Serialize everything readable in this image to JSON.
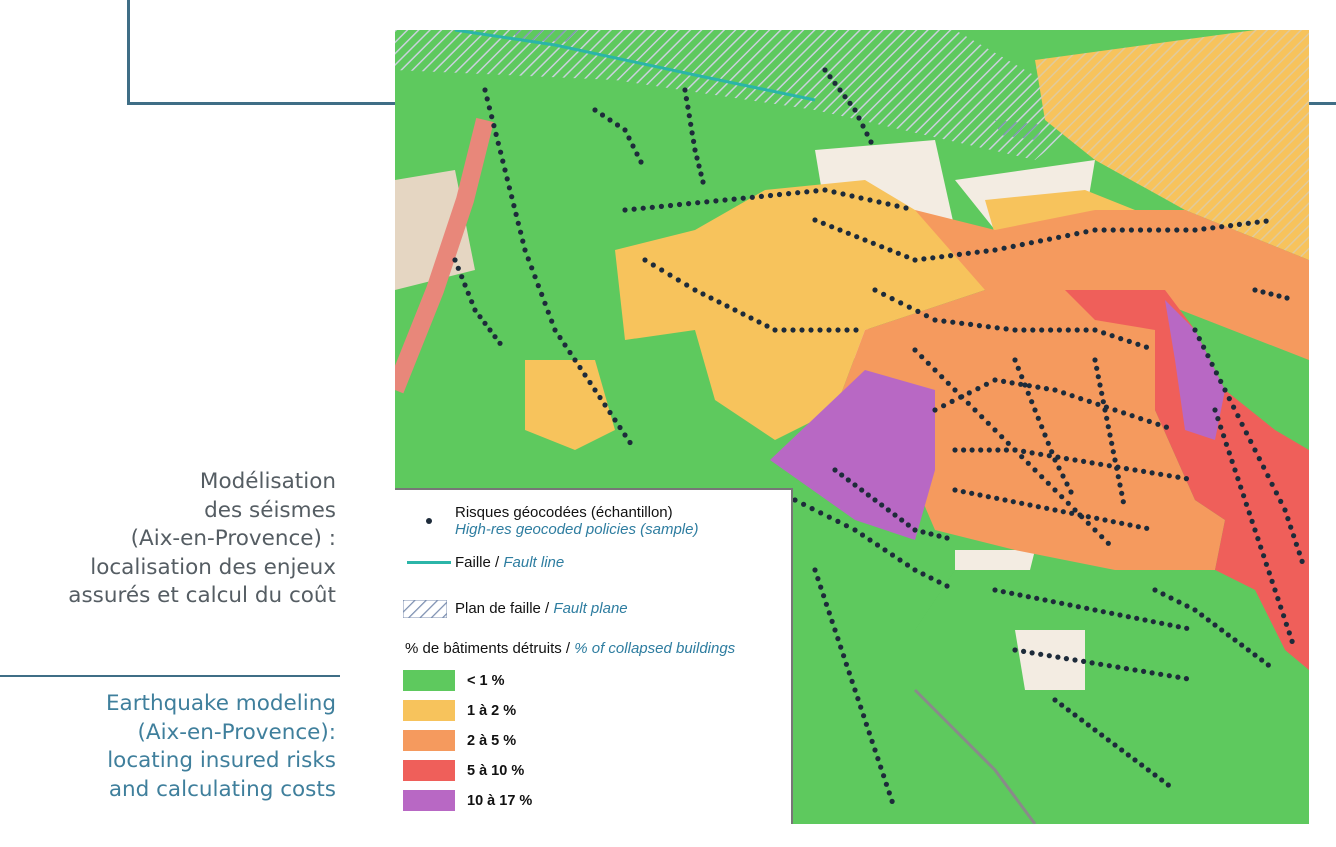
{
  "caption": {
    "french": "Modélisation\ndes séismes\n(Aix-en-Provence) :\nlocalisation des enjeux\nassurés et calcul du coût",
    "english": "Earthquake modeling\n(Aix-en-Provence):\nlocating insured risks\nand calculating costs"
  },
  "legend": {
    "policies": {
      "fr": "Risques géocodées (échantillon)",
      "en": "High-res geocoded policies (sample)"
    },
    "fault_line": {
      "fr": "Faille / ",
      "en": "Fault line",
      "color": "#2bb5a8"
    },
    "fault_plane": {
      "fr": "Plan de faille / ",
      "en": "Fault plane"
    },
    "collapse_title": {
      "fr": "% de bâtiments détruits / ",
      "en": "% of collapsed buildings"
    },
    "classes": [
      {
        "label": "< 1 %",
        "color": "#5ec95e"
      },
      {
        "label": "1 à 2 %",
        "color": "#f7c35c"
      },
      {
        "label": "2 à 5 %",
        "color": "#f59a5e"
      },
      {
        "label": "5 à 10 %",
        "color": "#ef5f5a"
      },
      {
        "label": "10 à 17 %",
        "color": "#b868c4"
      }
    ]
  },
  "colors": {
    "frame": "#3f6e86",
    "caption_fr": "#555d63",
    "caption_en": "#3f7f9c",
    "policy_dot": "#1d2b3a",
    "background_map": "#f3ece2"
  }
}
